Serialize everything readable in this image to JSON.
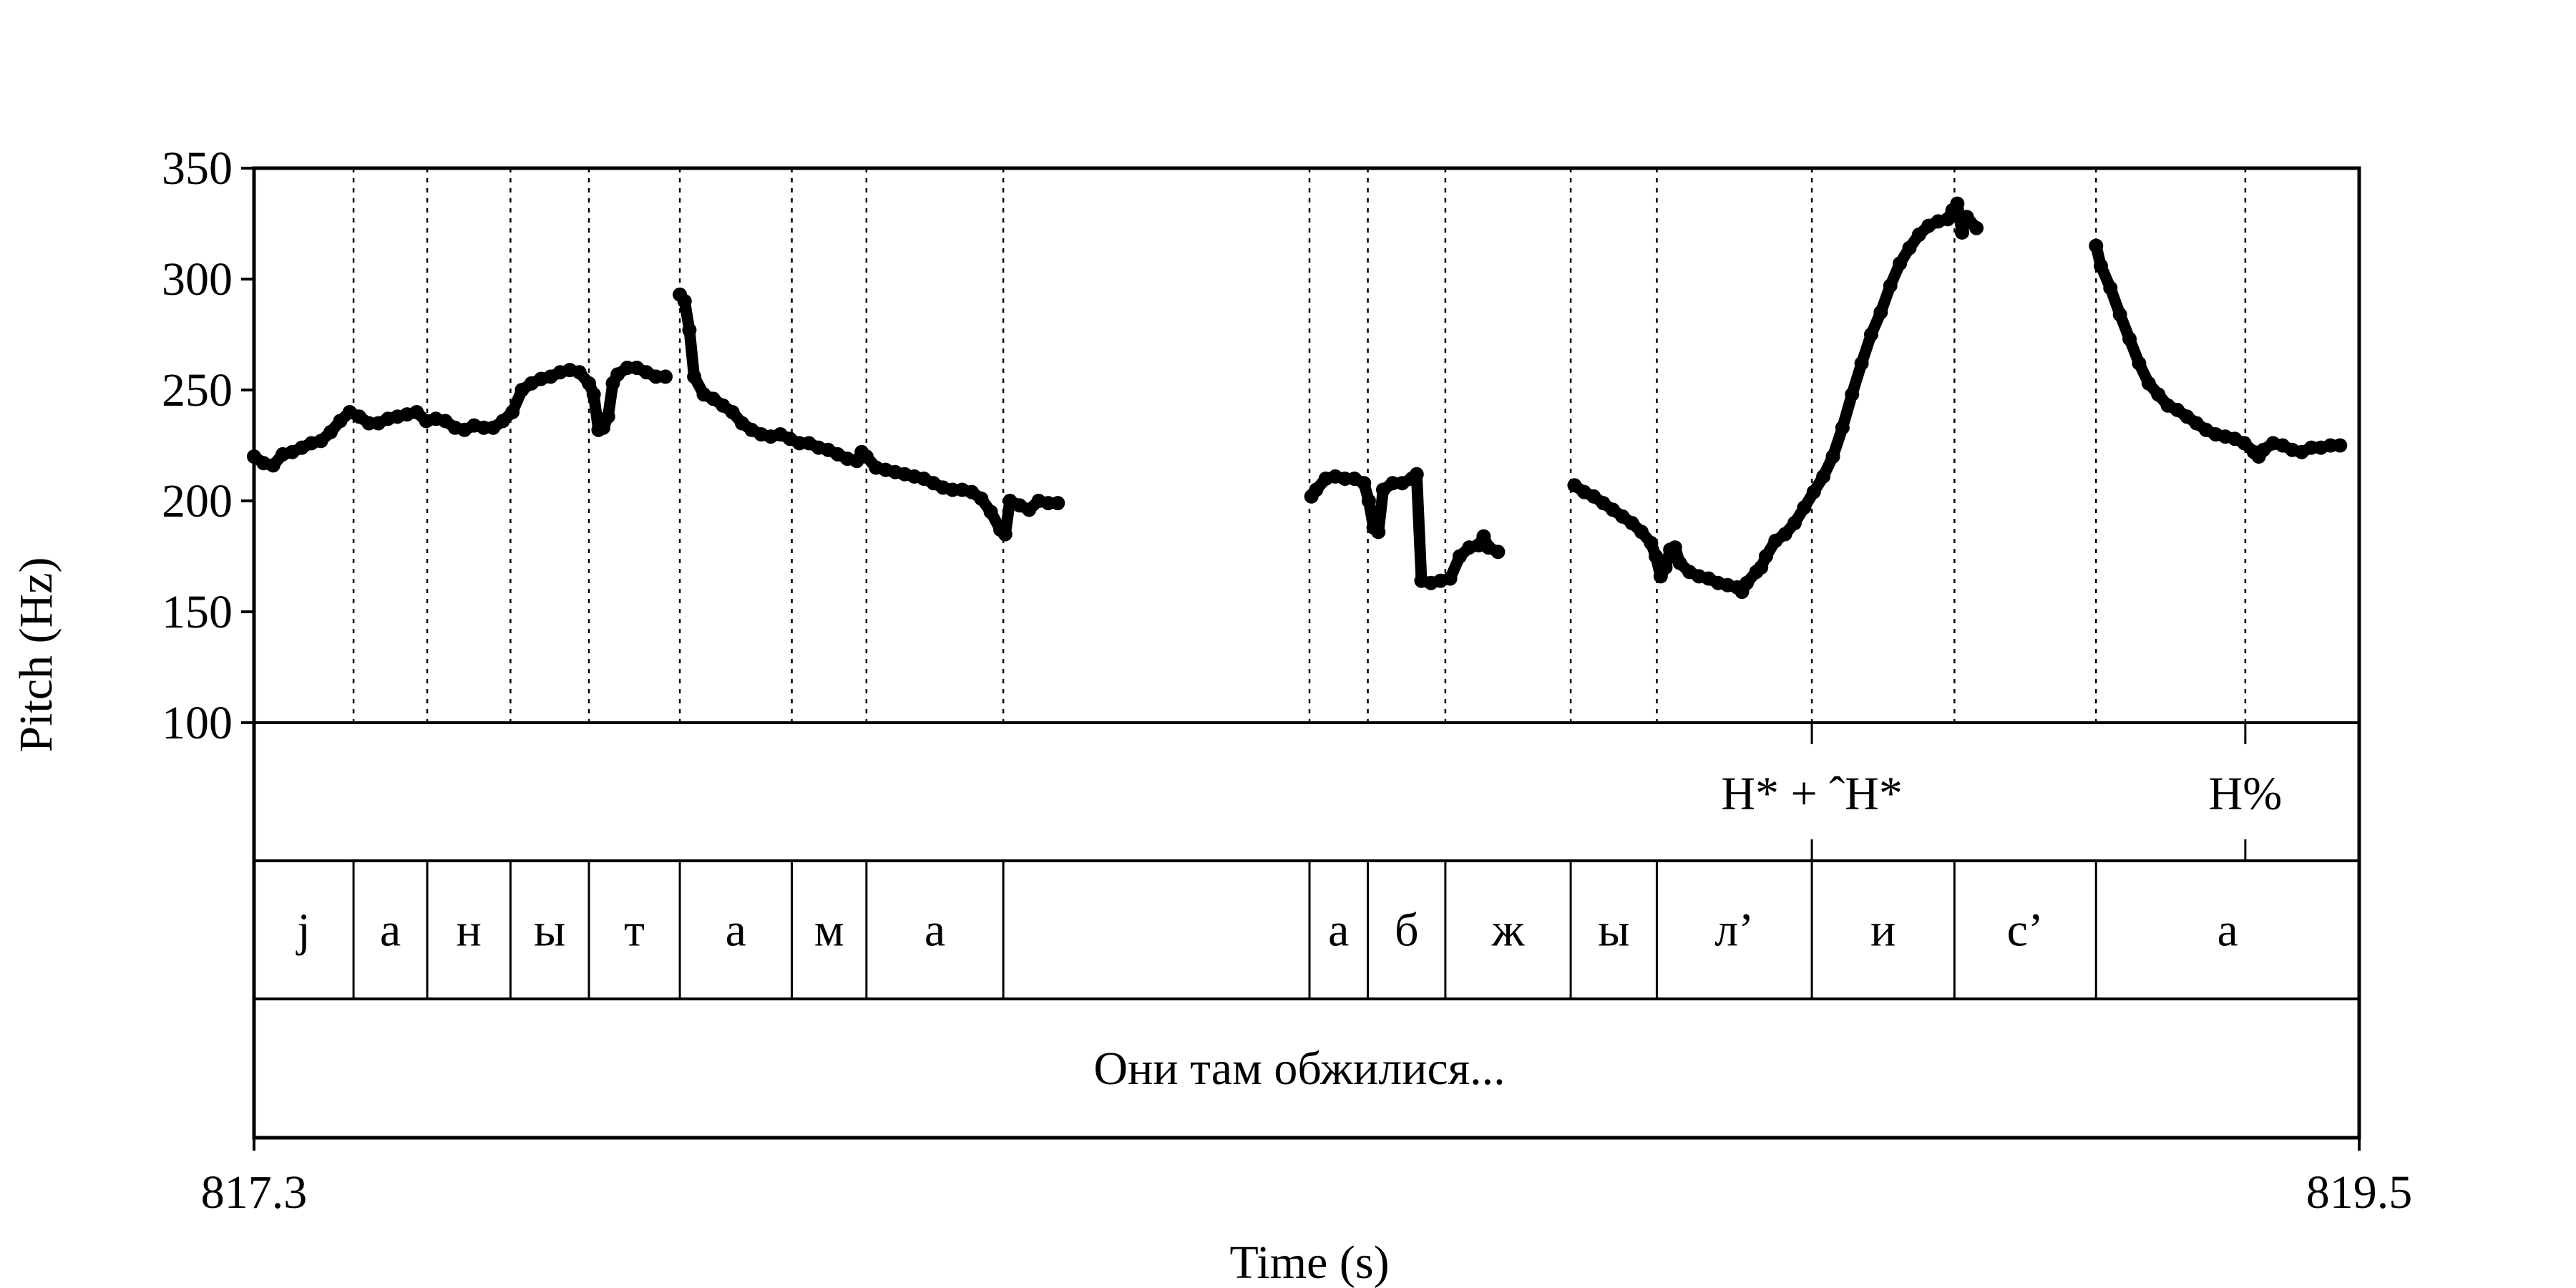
{
  "chart_data": {
    "type": "scatter",
    "ylabel": "Pitch (Hz)",
    "xlabel": "Time (s)",
    "xlim": [
      817.3,
      819.5
    ],
    "ylim": [
      100,
      350
    ],
    "x_tick_labels": [
      "817.3",
      "819.5"
    ],
    "y_ticks": [
      100,
      150,
      200,
      250,
      300,
      350
    ],
    "y_tick_labels": [
      "100",
      "150",
      "200",
      "250",
      "300",
      "350"
    ],
    "grid": false,
    "segment_boundaries": [
      817.404,
      817.481,
      817.568,
      817.65,
      817.745,
      817.862,
      817.94,
      818.083,
      818.403,
      818.464,
      818.545,
      818.676,
      818.766,
      818.928,
      819.077,
      819.225,
      819.381
    ],
    "tones": [
      {
        "time": 818.928,
        "label": "H* + ˆH*"
      },
      {
        "time": 819.381,
        "label": "H%"
      }
    ],
    "segments": [
      {
        "start": 817.3,
        "end": 817.404,
        "label": "j"
      },
      {
        "start": 817.404,
        "end": 817.481,
        "label": "а"
      },
      {
        "start": 817.481,
        "end": 817.568,
        "label": "н"
      },
      {
        "start": 817.568,
        "end": 817.65,
        "label": "ы"
      },
      {
        "start": 817.65,
        "end": 817.745,
        "label": "т"
      },
      {
        "start": 817.745,
        "end": 817.862,
        "label": "а"
      },
      {
        "start": 817.862,
        "end": 817.94,
        "label": "м"
      },
      {
        "start": 817.94,
        "end": 818.083,
        "label": "а"
      },
      {
        "start": 818.083,
        "end": 818.403,
        "label": ""
      },
      {
        "start": 818.403,
        "end": 818.464,
        "label": "а"
      },
      {
        "start": 818.464,
        "end": 818.545,
        "label": "б"
      },
      {
        "start": 818.545,
        "end": 818.676,
        "label": "ж"
      },
      {
        "start": 818.676,
        "end": 818.766,
        "label": "ы"
      },
      {
        "start": 818.766,
        "end": 818.928,
        "label": "л’"
      },
      {
        "start": 818.928,
        "end": 819.077,
        "label": "и"
      },
      {
        "start": 819.077,
        "end": 819.225,
        "label": "с’"
      },
      {
        "start": 819.225,
        "end": 819.5,
        "label": "а"
      }
    ],
    "sentence": "Они там обжилися...",
    "pitch_contours": [
      [
        [
          817.3,
          220
        ],
        [
          817.31,
          217
        ],
        [
          817.32,
          216
        ],
        [
          817.33,
          221
        ],
        [
          817.34,
          222
        ],
        [
          817.35,
          224
        ],
        [
          817.36,
          226
        ],
        [
          817.37,
          227
        ],
        [
          817.38,
          231
        ],
        [
          817.39,
          236
        ],
        [
          817.4,
          240
        ],
        [
          817.41,
          238
        ],
        [
          817.42,
          235
        ],
        [
          817.43,
          235
        ],
        [
          817.44,
          237
        ],
        [
          817.45,
          238
        ],
        [
          817.46,
          239
        ],
        [
          817.47,
          240
        ],
        [
          817.48,
          236
        ],
        [
          817.49,
          237
        ],
        [
          817.5,
          236
        ],
        [
          817.51,
          233
        ],
        [
          817.52,
          232
        ],
        [
          817.53,
          234
        ],
        [
          817.54,
          233
        ],
        [
          817.55,
          233
        ],
        [
          817.56,
          236
        ],
        [
          817.57,
          240
        ],
        [
          817.58,
          250
        ],
        [
          817.59,
          253
        ],
        [
          817.6,
          255
        ],
        [
          817.61,
          256
        ],
        [
          817.62,
          258
        ],
        [
          817.63,
          259
        ],
        [
          817.64,
          258
        ],
        [
          817.65,
          253
        ],
        [
          817.655,
          248
        ],
        [
          817.66,
          232
        ],
        [
          817.665,
          233
        ],
        [
          817.67,
          238
        ],
        [
          817.675,
          253
        ],
        [
          817.68,
          257
        ],
        [
          817.69,
          260
        ],
        [
          817.7,
          260
        ],
        [
          817.71,
          258
        ],
        [
          817.72,
          256
        ],
        [
          817.73,
          256
        ]
      ],
      [
        [
          817.745,
          293
        ],
        [
          817.75,
          290
        ],
        [
          817.755,
          277
        ],
        [
          817.76,
          256
        ],
        [
          817.77,
          248
        ],
        [
          817.78,
          246
        ],
        [
          817.79,
          243
        ],
        [
          817.8,
          240
        ],
        [
          817.81,
          235
        ],
        [
          817.82,
          232
        ],
        [
          817.83,
          230
        ],
        [
          817.84,
          229
        ],
        [
          817.85,
          230
        ],
        [
          817.86,
          228
        ],
        [
          817.87,
          226
        ],
        [
          817.88,
          226
        ],
        [
          817.89,
          224
        ],
        [
          817.9,
          223
        ],
        [
          817.91,
          221
        ],
        [
          817.92,
          219
        ],
        [
          817.93,
          218
        ],
        [
          817.935,
          222
        ],
        [
          817.94,
          220
        ],
        [
          817.95,
          215
        ],
        [
          817.96,
          214
        ],
        [
          817.97,
          213
        ],
        [
          817.98,
          212
        ],
        [
          817.99,
          211
        ],
        [
          818.0,
          210
        ],
        [
          818.01,
          208
        ],
        [
          818.02,
          206
        ],
        [
          818.03,
          205
        ],
        [
          818.04,
          205
        ],
        [
          818.05,
          204
        ],
        [
          818.06,
          201
        ],
        [
          818.07,
          195
        ],
        [
          818.08,
          187
        ],
        [
          818.085,
          185
        ],
        [
          818.09,
          200
        ],
        [
          818.1,
          198
        ],
        [
          818.11,
          196
        ],
        [
          818.12,
          200
        ],
        [
          818.13,
          199
        ],
        [
          818.14,
          199
        ]
      ],
      [
        [
          818.405,
          202
        ],
        [
          818.41,
          205
        ],
        [
          818.42,
          210
        ],
        [
          818.43,
          211
        ],
        [
          818.44,
          210
        ],
        [
          818.45,
          210
        ],
        [
          818.46,
          208
        ],
        [
          818.465,
          200
        ],
        [
          818.47,
          188
        ],
        [
          818.475,
          186
        ],
        [
          818.48,
          205
        ],
        [
          818.49,
          208
        ],
        [
          818.5,
          208
        ],
        [
          818.51,
          210
        ],
        [
          818.515,
          212
        ],
        [
          818.52,
          164
        ],
        [
          818.53,
          163
        ],
        [
          818.54,
          164
        ],
        [
          818.55,
          165
        ],
        [
          818.56,
          175
        ],
        [
          818.57,
          179
        ],
        [
          818.58,
          180
        ],
        [
          818.585,
          184
        ],
        [
          818.59,
          179
        ],
        [
          818.6,
          177
        ]
      ],
      [
        [
          818.68,
          207
        ],
        [
          818.69,
          204
        ],
        [
          818.7,
          202
        ],
        [
          818.71,
          199
        ],
        [
          818.72,
          196
        ],
        [
          818.73,
          193
        ],
        [
          818.74,
          190
        ],
        [
          818.75,
          186
        ],
        [
          818.76,
          181
        ],
        [
          818.765,
          175
        ],
        [
          818.77,
          166
        ],
        [
          818.775,
          170
        ],
        [
          818.78,
          178
        ],
        [
          818.785,
          179
        ],
        [
          818.79,
          172
        ],
        [
          818.8,
          168
        ],
        [
          818.81,
          166
        ],
        [
          818.82,
          165
        ],
        [
          818.83,
          163
        ],
        [
          818.84,
          162
        ],
        [
          818.85,
          161
        ],
        [
          818.855,
          159
        ],
        [
          818.86,
          163
        ],
        [
          818.87,
          168
        ],
        [
          818.875,
          170
        ],
        [
          818.88,
          175
        ],
        [
          818.89,
          182
        ],
        [
          818.9,
          185
        ],
        [
          818.91,
          190
        ],
        [
          818.92,
          197
        ],
        [
          818.93,
          204
        ],
        [
          818.94,
          211
        ],
        [
          818.95,
          220
        ],
        [
          818.96,
          233
        ],
        [
          818.97,
          248
        ],
        [
          818.98,
          262
        ],
        [
          818.99,
          275
        ],
        [
          819.0,
          285
        ],
        [
          819.01,
          297
        ],
        [
          819.02,
          307
        ],
        [
          819.03,
          314
        ],
        [
          819.04,
          320
        ],
        [
          819.05,
          324
        ],
        [
          819.06,
          326
        ],
        [
          819.07,
          327
        ],
        [
          819.075,
          331
        ],
        [
          819.08,
          334
        ],
        [
          819.085,
          321
        ],
        [
          819.09,
          328
        ],
        [
          819.1,
          323
        ]
      ],
      [
        [
          819.225,
          315
        ],
        [
          819.23,
          306
        ],
        [
          819.24,
          296
        ],
        [
          819.25,
          284
        ],
        [
          819.26,
          273
        ],
        [
          819.27,
          262
        ],
        [
          819.28,
          253
        ],
        [
          819.29,
          248
        ],
        [
          819.3,
          243
        ],
        [
          819.31,
          241
        ],
        [
          819.32,
          238
        ],
        [
          819.33,
          235
        ],
        [
          819.34,
          232
        ],
        [
          819.35,
          230
        ],
        [
          819.36,
          229
        ],
        [
          819.37,
          228
        ],
        [
          819.38,
          226
        ],
        [
          819.39,
          222
        ],
        [
          819.395,
          220
        ],
        [
          819.4,
          223
        ],
        [
          819.41,
          226
        ],
        [
          819.42,
          225
        ],
        [
          819.43,
          223
        ],
        [
          819.44,
          222
        ],
        [
          819.45,
          224
        ],
        [
          819.46,
          224
        ],
        [
          819.47,
          225
        ],
        [
          819.48,
          225
        ]
      ]
    ]
  }
}
